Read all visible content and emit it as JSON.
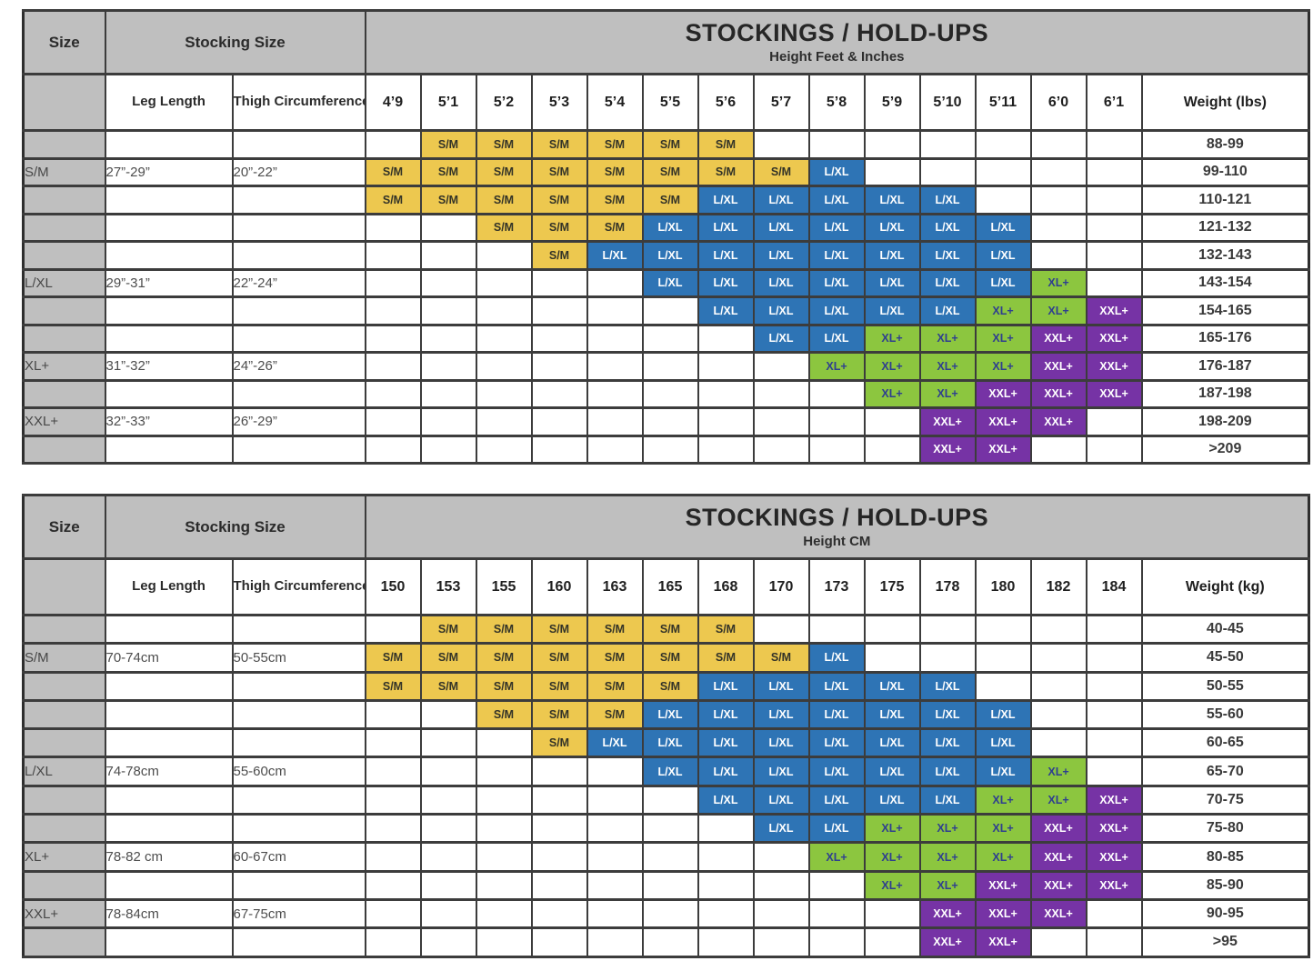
{
  "colors": {
    "header_bg": "#bfbfbf",
    "grid_line": "#3c3c3c",
    "cell_types": {
      "S/M": {
        "bg": "#edc84f",
        "fg": "#333328"
      },
      "L/XL": {
        "bg": "#2e74b5",
        "fg": "#ffffff"
      },
      "XL+": {
        "bg": "#8cc63f",
        "fg": "#2f3f8f"
      },
      "XXL+": {
        "bg": "#7633a5",
        "fg": "#ffffff"
      }
    }
  },
  "chart_data": [
    {
      "type": "table",
      "title": "STOCKINGS / HOLD-UPS",
      "subtitle": "Height Feet & Inches",
      "corner_header": "Size",
      "group_header": "Stocking Size",
      "leg_header": "Leg Length",
      "thigh_header": "Thigh Circumference",
      "weight_header": "Weight (lbs)",
      "heights": [
        "4’9",
        "5’1",
        "5’2",
        "5’3",
        "5’4",
        "5’5",
        "5’6",
        "5’7",
        "5’8",
        "5’9",
        "5’10",
        "5’11",
        "6’0",
        "6’1"
      ],
      "rows": [
        {
          "size": "",
          "leg": "",
          "thigh": "",
          "cells": [
            "",
            "S/M",
            "S/M",
            "S/M",
            "S/M",
            "S/M",
            "S/M",
            "",
            "",
            "",
            "",
            "",
            "",
            ""
          ],
          "weight": "88-99"
        },
        {
          "size": "S/M",
          "leg": "27”-29”",
          "thigh": "20”-22”",
          "cells": [
            "S/M",
            "S/M",
            "S/M",
            "S/M",
            "S/M",
            "S/M",
            "S/M",
            "S/M",
            "L/XL",
            "",
            "",
            "",
            "",
            ""
          ],
          "weight": "99-110"
        },
        {
          "size": "",
          "leg": "",
          "thigh": "",
          "cells": [
            "S/M",
            "S/M",
            "S/M",
            "S/M",
            "S/M",
            "S/M",
            "L/XL",
            "L/XL",
            "L/XL",
            "L/XL",
            "L/XL",
            "",
            "",
            ""
          ],
          "weight": "110-121"
        },
        {
          "size": "",
          "leg": "",
          "thigh": "",
          "cells": [
            "",
            "",
            "S/M",
            "S/M",
            "S/M",
            "L/XL",
            "L/XL",
            "L/XL",
            "L/XL",
            "L/XL",
            "L/XL",
            "L/XL",
            "",
            ""
          ],
          "weight": "121-132"
        },
        {
          "size": "",
          "leg": "",
          "thigh": "",
          "cells": [
            "",
            "",
            "",
            "S/M",
            "L/XL",
            "L/XL",
            "L/XL",
            "L/XL",
            "L/XL",
            "L/XL",
            "L/XL",
            "L/XL",
            "",
            ""
          ],
          "weight": "132-143"
        },
        {
          "size": "L/XL",
          "leg": "29”-31”",
          "thigh": "22”-24”",
          "cells": [
            "",
            "",
            "",
            "",
            "",
            "L/XL",
            "L/XL",
            "L/XL",
            "L/XL",
            "L/XL",
            "L/XL",
            "L/XL",
            "XL+",
            ""
          ],
          "weight": "143-154"
        },
        {
          "size": "",
          "leg": "",
          "thigh": "",
          "cells": [
            "",
            "",
            "",
            "",
            "",
            "",
            "L/XL",
            "L/XL",
            "L/XL",
            "L/XL",
            "L/XL",
            "XL+",
            "XL+",
            "XXL+"
          ],
          "weight": "154-165"
        },
        {
          "size": "",
          "leg": "",
          "thigh": "",
          "cells": [
            "",
            "",
            "",
            "",
            "",
            "",
            "",
            "L/XL",
            "L/XL",
            "XL+",
            "XL+",
            "XL+",
            "XXL+",
            "XXL+"
          ],
          "weight": "165-176"
        },
        {
          "size": "XL+",
          "leg": "31”-32”",
          "thigh": "24”-26”",
          "cells": [
            "",
            "",
            "",
            "",
            "",
            "",
            "",
            "",
            "XL+",
            "XL+",
            "XL+",
            "XL+",
            "XXL+",
            "XXL+"
          ],
          "weight": "176-187"
        },
        {
          "size": "",
          "leg": "",
          "thigh": "",
          "cells": [
            "",
            "",
            "",
            "",
            "",
            "",
            "",
            "",
            "",
            "XL+",
            "XL+",
            "XXL+",
            "XXL+",
            "XXL+"
          ],
          "weight": "187-198"
        },
        {
          "size": "XXL+",
          "leg": "32”-33”",
          "thigh": "26”-29”",
          "cells": [
            "",
            "",
            "",
            "",
            "",
            "",
            "",
            "",
            "",
            "",
            "XXL+",
            "XXL+",
            "XXL+",
            ""
          ],
          "weight": "198-209"
        },
        {
          "size": "",
          "leg": "",
          "thigh": "",
          "cells": [
            "",
            "",
            "",
            "",
            "",
            "",
            "",
            "",
            "",
            "",
            "XXL+",
            "XXL+",
            "",
            ""
          ],
          "weight": ">209"
        }
      ]
    },
    {
      "type": "table",
      "title": "STOCKINGS / HOLD-UPS",
      "subtitle": "Height CM",
      "corner_header": "Size",
      "group_header": "Stocking Size",
      "leg_header": "Leg Length",
      "thigh_header": "Thigh Circumference",
      "weight_header": "Weight (kg)",
      "heights": [
        "150",
        "153",
        "155",
        "160",
        "163",
        "165",
        "168",
        "170",
        "173",
        "175",
        "178",
        "180",
        "182",
        "184"
      ],
      "rows": [
        {
          "size": "",
          "leg": "",
          "thigh": "",
          "cells": [
            "",
            "S/M",
            "S/M",
            "S/M",
            "S/M",
            "S/M",
            "S/M",
            "",
            "",
            "",
            "",
            "",
            "",
            ""
          ],
          "weight": "40-45"
        },
        {
          "size": "S/M",
          "leg": "70-74cm",
          "thigh": "50-55cm",
          "cells": [
            "S/M",
            "S/M",
            "S/M",
            "S/M",
            "S/M",
            "S/M",
            "S/M",
            "S/M",
            "L/XL",
            "",
            "",
            "",
            "",
            ""
          ],
          "weight": "45-50"
        },
        {
          "size": "",
          "leg": "",
          "thigh": "",
          "cells": [
            "S/M",
            "S/M",
            "S/M",
            "S/M",
            "S/M",
            "S/M",
            "L/XL",
            "L/XL",
            "L/XL",
            "L/XL",
            "L/XL",
            "",
            "",
            ""
          ],
          "weight": "50-55"
        },
        {
          "size": "",
          "leg": "",
          "thigh": "",
          "cells": [
            "",
            "",
            "S/M",
            "S/M",
            "S/M",
            "L/XL",
            "L/XL",
            "L/XL",
            "L/XL",
            "L/XL",
            "L/XL",
            "L/XL",
            "",
            ""
          ],
          "weight": "55-60"
        },
        {
          "size": "",
          "leg": "",
          "thigh": "",
          "cells": [
            "",
            "",
            "",
            "S/M",
            "L/XL",
            "L/XL",
            "L/XL",
            "L/XL",
            "L/XL",
            "L/XL",
            "L/XL",
            "L/XL",
            "",
            ""
          ],
          "weight": "60-65"
        },
        {
          "size": "L/XL",
          "leg": "74-78cm",
          "thigh": "55-60cm",
          "cells": [
            "",
            "",
            "",
            "",
            "",
            "L/XL",
            "L/XL",
            "L/XL",
            "L/XL",
            "L/XL",
            "L/XL",
            "L/XL",
            "XL+",
            ""
          ],
          "weight": "65-70"
        },
        {
          "size": "",
          "leg": "",
          "thigh": "",
          "cells": [
            "",
            "",
            "",
            "",
            "",
            "",
            "L/XL",
            "L/XL",
            "L/XL",
            "L/XL",
            "L/XL",
            "XL+",
            "XL+",
            "XXL+"
          ],
          "weight": "70-75"
        },
        {
          "size": "",
          "leg": "",
          "thigh": "",
          "cells": [
            "",
            "",
            "",
            "",
            "",
            "",
            "",
            "L/XL",
            "L/XL",
            "XL+",
            "XL+",
            "XL+",
            "XXL+",
            "XXL+"
          ],
          "weight": "75-80"
        },
        {
          "size": "XL+",
          "leg": "78-82 cm",
          "thigh": "60-67cm",
          "cells": [
            "",
            "",
            "",
            "",
            "",
            "",
            "",
            "",
            "XL+",
            "XL+",
            "XL+",
            "XL+",
            "XXL+",
            "XXL+"
          ],
          "weight": "80-85"
        },
        {
          "size": "",
          "leg": "",
          "thigh": "",
          "cells": [
            "",
            "",
            "",
            "",
            "",
            "",
            "",
            "",
            "",
            "XL+",
            "XL+",
            "XXL+",
            "XXL+",
            "XXL+"
          ],
          "weight": "85-90"
        },
        {
          "size": "XXL+",
          "leg": "78-84cm",
          "thigh": "67-75cm",
          "cells": [
            "",
            "",
            "",
            "",
            "",
            "",
            "",
            "",
            "",
            "",
            "XXL+",
            "XXL+",
            "XXL+",
            ""
          ],
          "weight": "90-95"
        },
        {
          "size": "",
          "leg": "",
          "thigh": "",
          "cells": [
            "",
            "",
            "",
            "",
            "",
            "",
            "",
            "",
            "",
            "",
            "XXL+",
            "XXL+",
            "",
            ""
          ],
          "weight": ">95"
        }
      ]
    }
  ]
}
